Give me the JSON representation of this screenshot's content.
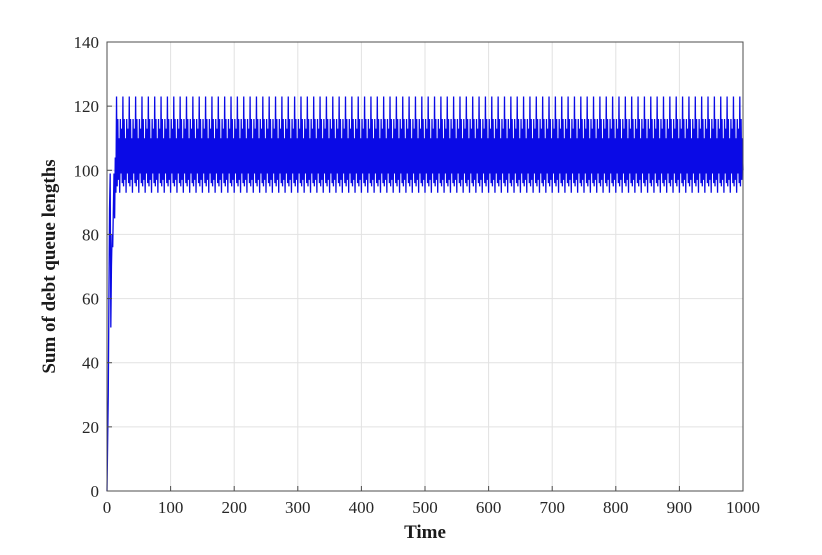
{
  "figure": {
    "background": "#FFFFFF",
    "description": "MATLAB-style line plot of sum of debt queue lengths over time"
  },
  "chart_data": {
    "type": "line",
    "title": "",
    "xlabel": "Time",
    "ylabel": "Sum of debt queue lengths",
    "xlim": [
      0,
      1000
    ],
    "ylim": [
      0,
      140
    ],
    "xticks": [
      0,
      100,
      200,
      300,
      400,
      500,
      600,
      700,
      800,
      900,
      1000
    ],
    "yticks": [
      0,
      20,
      40,
      60,
      80,
      100,
      120,
      140
    ],
    "grid": true,
    "legend": null,
    "colors": {
      "line": "#0A0AE6",
      "grid": "#E2E2E2",
      "axis": "#4D4D4D",
      "text": "#262626",
      "background": "#FFFFFF"
    },
    "series": [
      {
        "name": "sum-of-debt-queue-lengths",
        "description": "Starts at 0, spikes to ~99 then dips to ~51 during initial transient, then settles into a periodic oscillation between ~93 and ~123 with a tall peak of 123 every 10 time units and secondary peaks near 116.",
        "transient_points": [
          [
            0,
            0
          ],
          [
            2,
            30
          ],
          [
            3,
            60
          ],
          [
            4,
            88
          ],
          [
            5,
            99
          ],
          [
            6,
            51
          ],
          [
            7,
            70
          ],
          [
            8,
            80
          ],
          [
            9,
            76
          ],
          [
            10,
            88
          ],
          [
            11,
            99
          ],
          [
            12,
            85
          ],
          [
            13,
            104
          ],
          [
            14,
            93
          ]
        ],
        "steady_cycle": {
          "t_start": 15,
          "t_end": 1000,
          "period": 10,
          "offsets": [
            0,
            1,
            2,
            3,
            4,
            5,
            6,
            7,
            8,
            9
          ],
          "values": [
            123,
            95,
            116,
            97,
            110,
            93,
            116,
            99,
            113,
            96
          ]
        },
        "end_point": [
          1000,
          100
        ],
        "steady_envelope": {
          "peak": 123,
          "secondary_peak": 116,
          "trough": 93
        }
      }
    ]
  }
}
